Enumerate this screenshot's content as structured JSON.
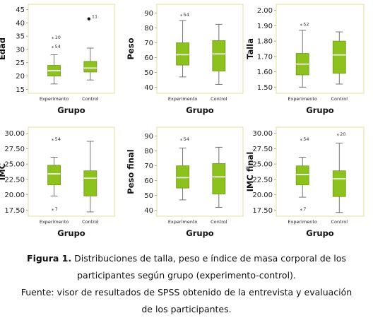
{
  "colors": {
    "box_fill": "#8cc11e",
    "box_stroke": "#6f9a17",
    "frame": "#e9e6a8",
    "whisker": "#666666",
    "median": "#ffffff"
  },
  "chart_data": [
    {
      "type": "boxplot",
      "ylabel": "Edad",
      "xlabel": "Grupo",
      "categories": [
        "Experimento",
        "Control"
      ],
      "yticks": [
        15,
        20,
        25,
        30,
        35,
        40,
        45
      ],
      "ylim": [
        13.5,
        47
      ],
      "boxes": [
        {
          "min": 17,
          "q1": 20,
          "median": 22,
          "q3": 24,
          "max": 28
        },
        {
          "min": 18.5,
          "q1": 21.5,
          "median": 23,
          "q3": 25.5,
          "max": 30.5
        }
      ],
      "outliers": [
        {
          "group": 0,
          "value": 34,
          "label": "10",
          "marker": "star"
        },
        {
          "group": 0,
          "value": 30.5,
          "label": "54",
          "marker": "star"
        },
        {
          "group": 1,
          "value": 41.5,
          "label": "11",
          "marker": "dot"
        }
      ]
    },
    {
      "type": "boxplot",
      "ylabel": "Peso",
      "xlabel": "Grupo",
      "categories": [
        "Experimento",
        "Control"
      ],
      "yticks": [
        40,
        50,
        60,
        70,
        80,
        90
      ],
      "ylim": [
        36,
        96
      ],
      "boxes": [
        {
          "min": 47,
          "q1": 55,
          "median": 62,
          "q3": 70,
          "max": 85
        },
        {
          "min": 42,
          "q1": 51,
          "median": 62.5,
          "q3": 71.5,
          "max": 82.5
        }
      ],
      "outliers": [
        {
          "group": 0,
          "value": 88,
          "label": "54",
          "marker": "star"
        }
      ]
    },
    {
      "type": "boxplot",
      "ylabel": "Talla",
      "xlabel": "Grupo",
      "categories": [
        "Experimento",
        "Control"
      ],
      "yticks": [
        1.5,
        1.6,
        1.7,
        1.8,
        1.9,
        2.0
      ],
      "ylim": [
        1.46,
        2.04
      ],
      "decimals": 2,
      "boxes": [
        {
          "min": 1.5,
          "q1": 1.58,
          "median": 1.65,
          "q3": 1.72,
          "max": 1.87
        },
        {
          "min": 1.52,
          "q1": 1.59,
          "median": 1.71,
          "q3": 1.8,
          "max": 1.86
        }
      ],
      "outliers": [
        {
          "group": 0,
          "value": 1.9,
          "label": "52",
          "marker": "star"
        }
      ]
    },
    {
      "type": "boxplot",
      "ylabel": "IMC",
      "xlabel": "Grupo",
      "categories": [
        "Experimento",
        "Control"
      ],
      "yticks": [
        17.5,
        20,
        22.5,
        25,
        27.5,
        30
      ],
      "ylim": [
        16.5,
        31
      ],
      "decimals": 2,
      "boxes": [
        {
          "min": 19.8,
          "q1": 21.6,
          "median": 23.4,
          "q3": 24.8,
          "max": 26.1
        },
        {
          "min": 17.2,
          "q1": 19.8,
          "median": 22.7,
          "q3": 23.9,
          "max": 28.7
        }
      ],
      "outliers": [
        {
          "group": 0,
          "value": 28.8,
          "label": "54",
          "marker": "star"
        },
        {
          "group": 0,
          "value": 17.4,
          "label": "7",
          "marker": "star"
        }
      ]
    },
    {
      "type": "boxplot",
      "ylabel": "Peso final",
      "xlabel": "Grupo",
      "categories": [
        "Experimento",
        "Control"
      ],
      "yticks": [
        40,
        50,
        60,
        70,
        80,
        90
      ],
      "ylim": [
        36,
        96
      ],
      "boxes": [
        {
          "min": 47,
          "q1": 55,
          "median": 62,
          "q3": 70,
          "max": 82
        },
        {
          "min": 42,
          "q1": 51,
          "median": 62.5,
          "q3": 71.5,
          "max": 82.5
        }
      ],
      "outliers": [
        {
          "group": 0,
          "value": 87,
          "label": "54",
          "marker": "star"
        }
      ]
    },
    {
      "type": "boxplot",
      "ylabel": "IMC final",
      "xlabel": "Grupo",
      "categories": [
        "Experimento",
        "Control"
      ],
      "yticks": [
        17.5,
        20,
        22.5,
        25,
        27.5,
        30
      ],
      "ylim": [
        16.5,
        31
      ],
      "decimals": 2,
      "boxes": [
        {
          "min": 19.6,
          "q1": 21.6,
          "median": 23.3,
          "q3": 24.7,
          "max": 26.1
        },
        {
          "min": 17.1,
          "q1": 19.7,
          "median": 22.6,
          "q3": 23.9,
          "max": 28.4
        }
      ],
      "outliers": [
        {
          "group": 0,
          "value": 28.8,
          "label": "54",
          "marker": "star"
        },
        {
          "group": 0,
          "value": 17.4,
          "label": "7",
          "marker": "star"
        },
        {
          "group": 1,
          "value": 29.6,
          "label": "20",
          "marker": "star"
        }
      ]
    }
  ],
  "caption": {
    "figure_label": "Figura 1.",
    "line1": "Distribuciones de talla, peso e índice de masa corporal de los",
    "line2": "participantes según grupo (experimento-control).",
    "line3": "Fuente: visor de resultados de SPSS obtenido de la entrevista y evaluación",
    "line4": "de los participantes."
  }
}
